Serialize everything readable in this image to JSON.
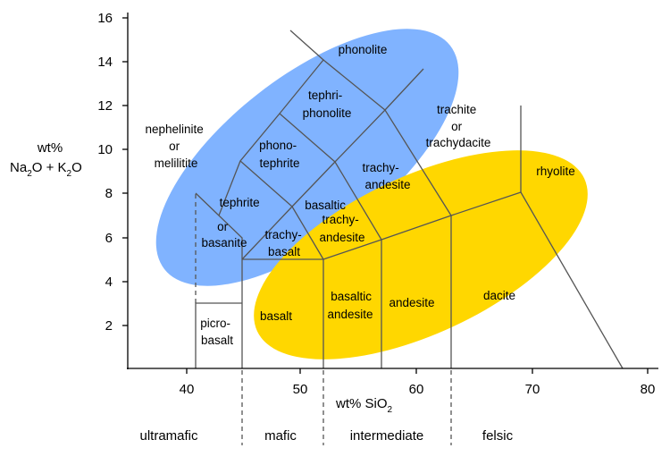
{
  "colors": {
    "alkaline_ellipse": "#80b3ff",
    "subalkaline_ellipse": "#ffd700",
    "boundary": "#555555",
    "axis": "#000000"
  },
  "axes": {
    "x": {
      "title": "wt% SiO",
      "title_sub": "2",
      "ticks": [
        "40",
        "50",
        "60",
        "70",
        "80"
      ]
    },
    "y": {
      "title_line1": "wt%",
      "title_na": "Na",
      "title_na_sub": "2",
      "title_o1": "O + K",
      "title_k_sub": "2",
      "title_o2": "O",
      "ticks": [
        "2",
        "4",
        "6",
        "8",
        "10",
        "12",
        "14",
        "16"
      ]
    }
  },
  "fields": {
    "phonolite": "phonolite",
    "tephriphonolite": [
      "tephri-",
      "phonolite"
    ],
    "phonotephrite": [
      "phono-",
      "tephrite"
    ],
    "tephrite_basanite": [
      "tephrite",
      "or",
      "basanite"
    ],
    "foidite": [
      "nephelinite",
      "or",
      "melilitite"
    ],
    "trachybasalt": [
      "trachy-",
      "basalt"
    ],
    "basaltic_trachyandesite": [
      "basaltic",
      "trachy-",
      "andesite"
    ],
    "trachyandesite": [
      "trachy-",
      "andesite"
    ],
    "trachyte": [
      "trachite",
      "or",
      "trachydacite"
    ],
    "rhyolite": "rhyolite",
    "picrobasalt": [
      "picro-",
      "basalt"
    ],
    "basalt": "basalt",
    "basaltic_andesite": [
      "basaltic",
      "andesite"
    ],
    "andesite": "andesite",
    "dacite": "dacite"
  },
  "classes": [
    "ultramafic",
    "mafic",
    "intermediate",
    "felsic"
  ]
}
